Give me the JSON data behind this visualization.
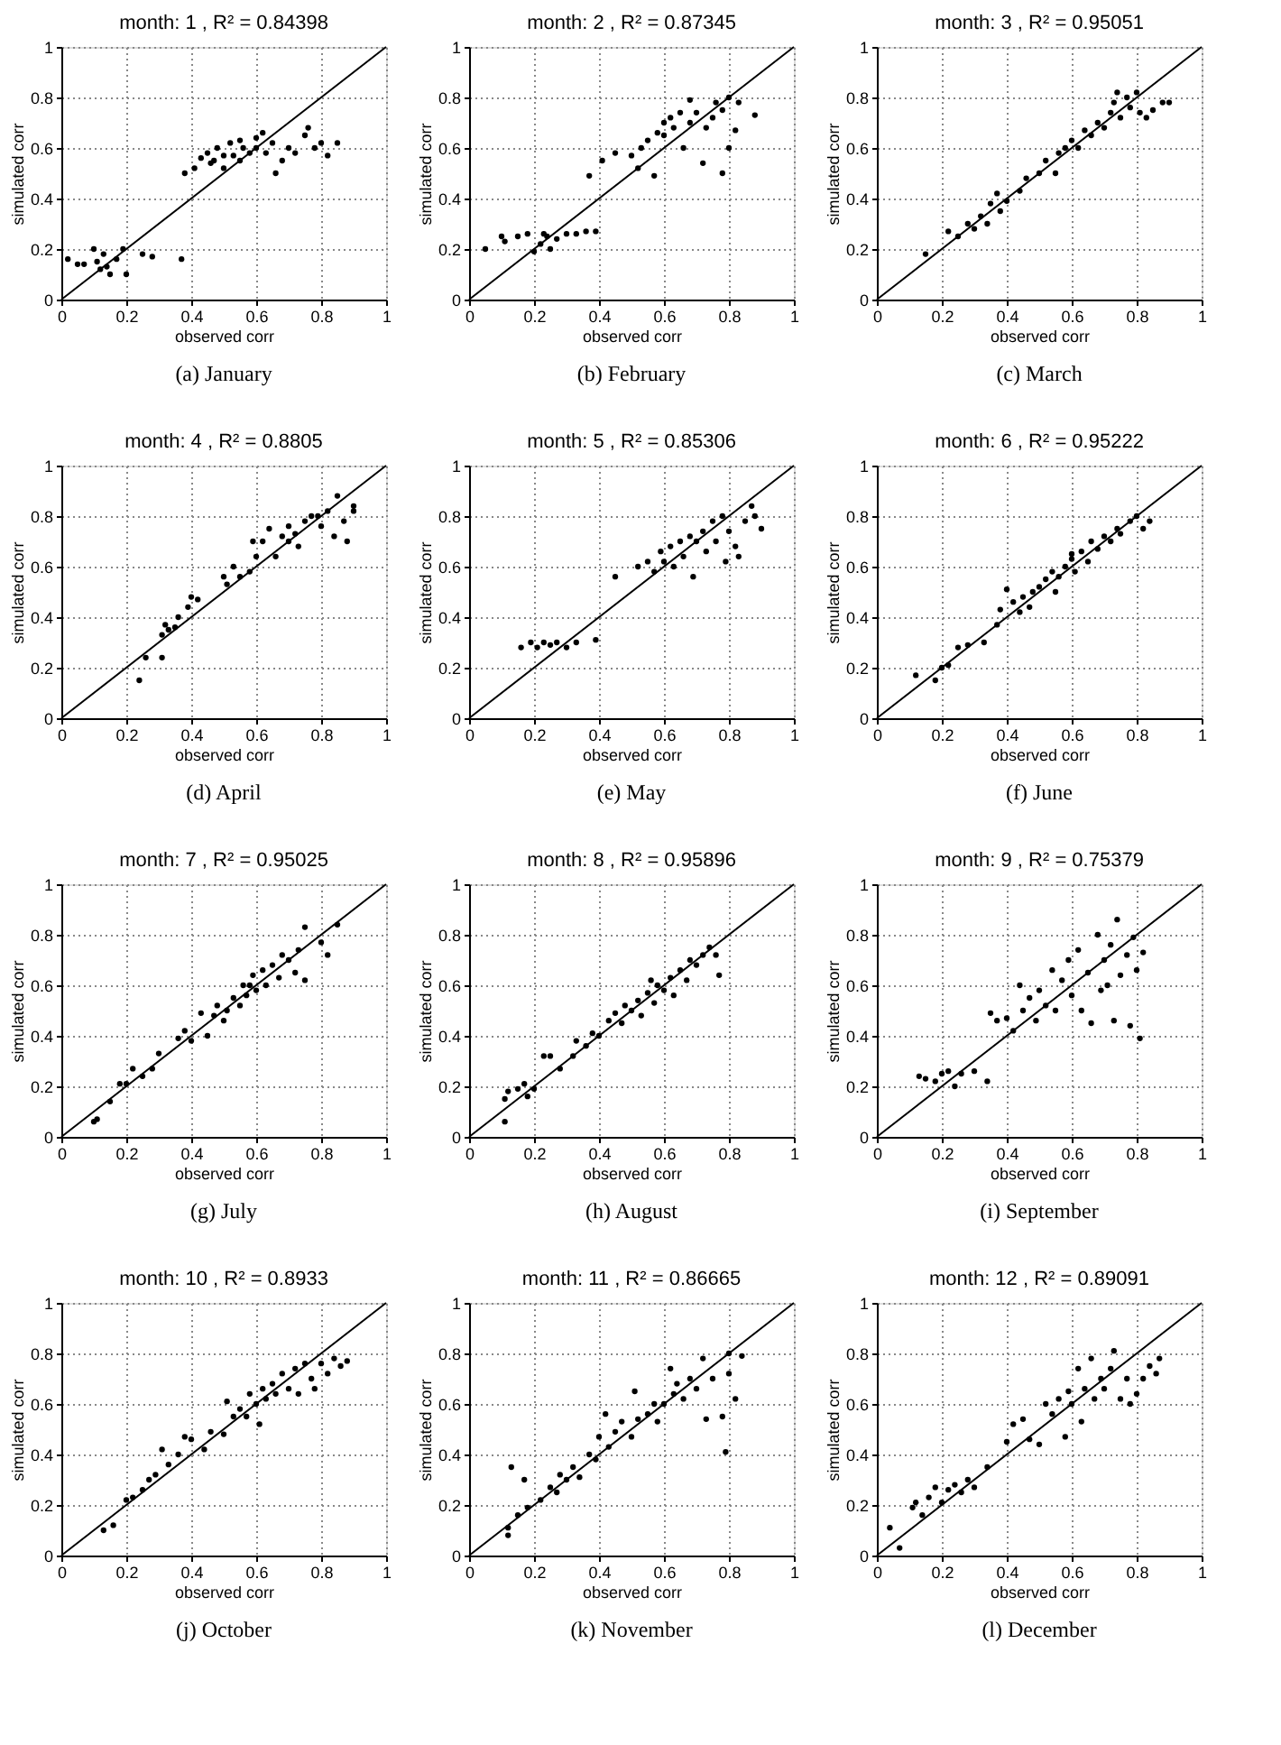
{
  "chart_data": [
    {
      "type": "scatter",
      "title": "month: 1 ,  R² = 0.84398",
      "xlabel": "observed corr",
      "ylabel": "simulated corr",
      "annotations": [
        "(a)  January"
      ],
      "xlim": [
        0,
        1
      ],
      "ylim": [
        0,
        1
      ],
      "xticks": [
        0,
        0.2,
        0.4,
        0.6,
        0.8,
        1
      ],
      "yticks": [
        0,
        0.2,
        0.4,
        0.6,
        0.8,
        1
      ],
      "grid": true,
      "marker": "circle",
      "series": [
        {
          "color": "#000000",
          "x": [
            0.02,
            0.05,
            0.07,
            0.1,
            0.12,
            0.13,
            0.15,
            0.17,
            0.19,
            0.2,
            0.25,
            0.28,
            0.37,
            0.14,
            0.11,
            0.38,
            0.41,
            0.43,
            0.45,
            0.47,
            0.48,
            0.5,
            0.5,
            0.52,
            0.53,
            0.55,
            0.56,
            0.58,
            0.6,
            0.6,
            0.62,
            0.63,
            0.65,
            0.66,
            0.68,
            0.7,
            0.72,
            0.75,
            0.76,
            0.78,
            0.8,
            0.82,
            0.85,
            0.55,
            0.46
          ],
          "values": [
            0.16,
            0.14,
            0.14,
            0.2,
            0.12,
            0.18,
            0.1,
            0.16,
            0.2,
            0.1,
            0.18,
            0.17,
            0.16,
            0.13,
            0.15,
            0.5,
            0.52,
            0.56,
            0.58,
            0.55,
            0.6,
            0.57,
            0.52,
            0.62,
            0.57,
            0.55,
            0.6,
            0.58,
            0.64,
            0.6,
            0.66,
            0.58,
            0.62,
            0.5,
            0.55,
            0.6,
            0.58,
            0.65,
            0.68,
            0.6,
            0.62,
            0.57,
            0.62,
            0.63,
            0.54
          ]
        },
        {
          "type": "line",
          "marker": "none",
          "color": "#000000",
          "x": [
            0,
            1
          ],
          "values": [
            0,
            1
          ]
        }
      ]
    },
    {
      "type": "scatter",
      "title": "month: 2 ,  R² = 0.87345",
      "xlabel": "observed corr",
      "ylabel": "simulated corr",
      "annotations": [
        "(b)  February"
      ],
      "xlim": [
        0,
        1
      ],
      "ylim": [
        0,
        1
      ],
      "xticks": [
        0,
        0.2,
        0.4,
        0.6,
        0.8,
        1
      ],
      "yticks": [
        0,
        0.2,
        0.4,
        0.6,
        0.8,
        1
      ],
      "grid": true,
      "marker": "circle",
      "series": [
        {
          "color": "#000000",
          "x": [
            0.05,
            0.1,
            0.11,
            0.15,
            0.18,
            0.2,
            0.22,
            0.23,
            0.25,
            0.27,
            0.3,
            0.33,
            0.36,
            0.39,
            0.24,
            0.37,
            0.41,
            0.45,
            0.5,
            0.52,
            0.53,
            0.55,
            0.57,
            0.58,
            0.6,
            0.62,
            0.63,
            0.65,
            0.66,
            0.68,
            0.7,
            0.72,
            0.73,
            0.75,
            0.76,
            0.78,
            0.78,
            0.8,
            0.8,
            0.82,
            0.83,
            0.88,
            0.68,
            0.6
          ],
          "values": [
            0.2,
            0.25,
            0.23,
            0.25,
            0.26,
            0.19,
            0.22,
            0.26,
            0.2,
            0.24,
            0.26,
            0.26,
            0.27,
            0.27,
            0.25,
            0.49,
            0.55,
            0.58,
            0.57,
            0.52,
            0.6,
            0.63,
            0.49,
            0.66,
            0.65,
            0.72,
            0.68,
            0.74,
            0.6,
            0.7,
            0.74,
            0.54,
            0.68,
            0.72,
            0.78,
            0.5,
            0.75,
            0.6,
            0.8,
            0.67,
            0.78,
            0.73,
            0.79,
            0.7
          ]
        },
        {
          "type": "line",
          "marker": "none",
          "color": "#000000",
          "x": [
            0,
            1
          ],
          "values": [
            0,
            1
          ]
        }
      ]
    },
    {
      "type": "scatter",
      "title": "month: 3 ,  R² = 0.95051",
      "xlabel": "observed corr",
      "ylabel": "simulated corr",
      "annotations": [
        "(c)  March"
      ],
      "xlim": [
        0,
        1
      ],
      "ylim": [
        0,
        1
      ],
      "xticks": [
        0,
        0.2,
        0.4,
        0.6,
        0.8,
        1
      ],
      "yticks": [
        0,
        0.2,
        0.4,
        0.6,
        0.8,
        1
      ],
      "grid": true,
      "marker": "circle",
      "series": [
        {
          "color": "#000000",
          "x": [
            0.15,
            0.22,
            0.25,
            0.28,
            0.3,
            0.32,
            0.34,
            0.35,
            0.37,
            0.38,
            0.4,
            0.44,
            0.46,
            0.5,
            0.52,
            0.55,
            0.56,
            0.58,
            0.6,
            0.62,
            0.64,
            0.66,
            0.68,
            0.7,
            0.72,
            0.73,
            0.75,
            0.77,
            0.78,
            0.8,
            0.81,
            0.83,
            0.85,
            0.88,
            0.9,
            0.74
          ],
          "values": [
            0.18,
            0.27,
            0.25,
            0.3,
            0.28,
            0.33,
            0.3,
            0.38,
            0.42,
            0.35,
            0.39,
            0.43,
            0.48,
            0.5,
            0.55,
            0.5,
            0.58,
            0.6,
            0.63,
            0.6,
            0.67,
            0.65,
            0.7,
            0.68,
            0.74,
            0.78,
            0.72,
            0.8,
            0.76,
            0.82,
            0.74,
            0.72,
            0.75,
            0.78,
            0.78,
            0.82
          ]
        },
        {
          "type": "line",
          "marker": "none",
          "color": "#000000",
          "x": [
            0,
            1
          ],
          "values": [
            0,
            1
          ]
        }
      ]
    },
    {
      "type": "scatter",
      "title": "month: 4 ,  R² = 0.8805",
      "xlabel": "observed corr",
      "ylabel": "simulated corr",
      "annotations": [
        "(d)  April"
      ],
      "xlim": [
        0,
        1
      ],
      "ylim": [
        0,
        1
      ],
      "xticks": [
        0,
        0.2,
        0.4,
        0.6,
        0.8,
        1
      ],
      "yticks": [
        0,
        0.2,
        0.4,
        0.6,
        0.8,
        1
      ],
      "grid": true,
      "marker": "circle",
      "series": [
        {
          "color": "#000000",
          "x": [
            0.24,
            0.26,
            0.31,
            0.31,
            0.32,
            0.33,
            0.35,
            0.36,
            0.39,
            0.4,
            0.42,
            0.5,
            0.51,
            0.53,
            0.55,
            0.58,
            0.59,
            0.6,
            0.62,
            0.64,
            0.66,
            0.68,
            0.7,
            0.72,
            0.73,
            0.75,
            0.77,
            0.79,
            0.8,
            0.82,
            0.84,
            0.85,
            0.87,
            0.88,
            0.9,
            0.9,
            0.7
          ],
          "values": [
            0.15,
            0.24,
            0.24,
            0.33,
            0.37,
            0.35,
            0.36,
            0.4,
            0.44,
            0.48,
            0.47,
            0.56,
            0.53,
            0.6,
            0.56,
            0.58,
            0.7,
            0.64,
            0.7,
            0.75,
            0.64,
            0.72,
            0.76,
            0.73,
            0.68,
            0.78,
            0.8,
            0.8,
            0.76,
            0.82,
            0.72,
            0.88,
            0.78,
            0.7,
            0.84,
            0.82,
            0.7
          ]
        },
        {
          "type": "line",
          "marker": "none",
          "color": "#000000",
          "x": [
            0,
            1
          ],
          "values": [
            0,
            1
          ]
        }
      ]
    },
    {
      "type": "scatter",
      "title": "month: 5 ,  R² = 0.85306",
      "xlabel": "observed corr",
      "ylabel": "simulated corr",
      "annotations": [
        "(e)  May"
      ],
      "xlim": [
        0,
        1
      ],
      "ylim": [
        0,
        1
      ],
      "xticks": [
        0,
        0.2,
        0.4,
        0.6,
        0.8,
        1
      ],
      "yticks": [
        0,
        0.2,
        0.4,
        0.6,
        0.8,
        1
      ],
      "grid": true,
      "marker": "circle",
      "series": [
        {
          "color": "#000000",
          "x": [
            0.16,
            0.19,
            0.21,
            0.23,
            0.25,
            0.27,
            0.3,
            0.33,
            0.39,
            0.45,
            0.52,
            0.55,
            0.57,
            0.59,
            0.6,
            0.62,
            0.63,
            0.65,
            0.66,
            0.68,
            0.69,
            0.7,
            0.72,
            0.73,
            0.75,
            0.76,
            0.78,
            0.79,
            0.8,
            0.82,
            0.83,
            0.85,
            0.87,
            0.88,
            0.9
          ],
          "values": [
            0.28,
            0.3,
            0.28,
            0.3,
            0.29,
            0.3,
            0.28,
            0.3,
            0.31,
            0.56,
            0.6,
            0.62,
            0.58,
            0.66,
            0.62,
            0.68,
            0.6,
            0.7,
            0.64,
            0.72,
            0.56,
            0.7,
            0.74,
            0.66,
            0.78,
            0.7,
            0.8,
            0.62,
            0.74,
            0.68,
            0.64,
            0.78,
            0.84,
            0.8,
            0.75
          ]
        },
        {
          "type": "line",
          "marker": "none",
          "color": "#000000",
          "x": [
            0,
            1
          ],
          "values": [
            0,
            1
          ]
        }
      ]
    },
    {
      "type": "scatter",
      "title": "month: 6 ,  R² = 0.95222",
      "xlabel": "observed corr",
      "ylabel": "simulated corr",
      "annotations": [
        "(f)  June"
      ],
      "xlim": [
        0,
        1
      ],
      "ylim": [
        0,
        1
      ],
      "xticks": [
        0,
        0.2,
        0.4,
        0.6,
        0.8,
        1
      ],
      "yticks": [
        0,
        0.2,
        0.4,
        0.6,
        0.8,
        1
      ],
      "grid": true,
      "marker": "circle",
      "series": [
        {
          "color": "#000000",
          "x": [
            0.12,
            0.18,
            0.2,
            0.22,
            0.25,
            0.28,
            0.33,
            0.37,
            0.38,
            0.4,
            0.42,
            0.44,
            0.45,
            0.47,
            0.48,
            0.5,
            0.52,
            0.54,
            0.55,
            0.56,
            0.58,
            0.6,
            0.61,
            0.63,
            0.65,
            0.66,
            0.68,
            0.7,
            0.72,
            0.74,
            0.75,
            0.78,
            0.8,
            0.82,
            0.84,
            0.6
          ],
          "values": [
            0.17,
            0.15,
            0.2,
            0.21,
            0.28,
            0.29,
            0.3,
            0.37,
            0.43,
            0.51,
            0.46,
            0.42,
            0.48,
            0.44,
            0.5,
            0.52,
            0.55,
            0.58,
            0.5,
            0.56,
            0.6,
            0.63,
            0.58,
            0.66,
            0.62,
            0.7,
            0.67,
            0.72,
            0.7,
            0.75,
            0.73,
            0.78,
            0.8,
            0.75,
            0.78,
            0.65
          ]
        },
        {
          "type": "line",
          "marker": "none",
          "color": "#000000",
          "x": [
            0,
            1
          ],
          "values": [
            0,
            1
          ]
        }
      ]
    },
    {
      "type": "scatter",
      "title": "month: 7 ,  R² = 0.95025",
      "xlabel": "observed corr",
      "ylabel": "simulated corr",
      "annotations": [
        "(g)  July"
      ],
      "xlim": [
        0,
        1
      ],
      "ylim": [
        0,
        1
      ],
      "xticks": [
        0,
        0.2,
        0.4,
        0.6,
        0.8,
        1
      ],
      "yticks": [
        0,
        0.2,
        0.4,
        0.6,
        0.8,
        1
      ],
      "grid": true,
      "marker": "circle",
      "series": [
        {
          "color": "#000000",
          "x": [
            0.1,
            0.11,
            0.15,
            0.18,
            0.2,
            0.22,
            0.25,
            0.28,
            0.3,
            0.36,
            0.38,
            0.4,
            0.43,
            0.45,
            0.47,
            0.48,
            0.5,
            0.51,
            0.53,
            0.55,
            0.56,
            0.57,
            0.59,
            0.6,
            0.62,
            0.63,
            0.65,
            0.67,
            0.68,
            0.7,
            0.72,
            0.73,
            0.75,
            0.75,
            0.8,
            0.82,
            0.85,
            0.58
          ],
          "values": [
            0.06,
            0.07,
            0.14,
            0.21,
            0.21,
            0.27,
            0.24,
            0.27,
            0.33,
            0.39,
            0.42,
            0.38,
            0.49,
            0.4,
            0.48,
            0.52,
            0.46,
            0.5,
            0.55,
            0.52,
            0.6,
            0.56,
            0.64,
            0.58,
            0.66,
            0.6,
            0.68,
            0.63,
            0.72,
            0.7,
            0.65,
            0.74,
            0.62,
            0.83,
            0.77,
            0.72,
            0.84,
            0.6
          ]
        },
        {
          "type": "line",
          "marker": "none",
          "color": "#000000",
          "x": [
            0,
            1
          ],
          "values": [
            0,
            1
          ]
        }
      ]
    },
    {
      "type": "scatter",
      "title": "month: 8 ,  R² = 0.95896",
      "xlabel": "observed corr",
      "ylabel": "simulated corr",
      "annotations": [
        "(h)  August"
      ],
      "xlim": [
        0,
        1
      ],
      "ylim": [
        0,
        1
      ],
      "xticks": [
        0,
        0.2,
        0.4,
        0.6,
        0.8,
        1
      ],
      "yticks": [
        0,
        0.2,
        0.4,
        0.6,
        0.8,
        1
      ],
      "grid": true,
      "marker": "circle",
      "series": [
        {
          "color": "#000000",
          "x": [
            0.11,
            0.11,
            0.12,
            0.15,
            0.17,
            0.18,
            0.2,
            0.23,
            0.25,
            0.28,
            0.32,
            0.33,
            0.36,
            0.38,
            0.4,
            0.43,
            0.45,
            0.47,
            0.48,
            0.5,
            0.52,
            0.53,
            0.55,
            0.57,
            0.58,
            0.6,
            0.62,
            0.63,
            0.65,
            0.67,
            0.68,
            0.7,
            0.72,
            0.74,
            0.76,
            0.77,
            0.56
          ],
          "values": [
            0.06,
            0.15,
            0.18,
            0.19,
            0.21,
            0.16,
            0.19,
            0.32,
            0.32,
            0.27,
            0.32,
            0.38,
            0.36,
            0.41,
            0.4,
            0.46,
            0.49,
            0.45,
            0.52,
            0.5,
            0.54,
            0.48,
            0.57,
            0.53,
            0.6,
            0.58,
            0.63,
            0.56,
            0.66,
            0.62,
            0.7,
            0.68,
            0.72,
            0.75,
            0.72,
            0.64,
            0.62
          ]
        },
        {
          "type": "line",
          "marker": "none",
          "color": "#000000",
          "x": [
            0,
            1
          ],
          "values": [
            0,
            1
          ]
        }
      ]
    },
    {
      "type": "scatter",
      "title": "month: 9 ,  R² = 0.75379",
      "xlabel": "observed corr",
      "ylabel": "simulated corr",
      "annotations": [
        "(i)  September"
      ],
      "xlim": [
        0,
        1
      ],
      "ylim": [
        0,
        1
      ],
      "xticks": [
        0,
        0.2,
        0.4,
        0.6,
        0.8,
        1
      ],
      "yticks": [
        0,
        0.2,
        0.4,
        0.6,
        0.8,
        1
      ],
      "grid": true,
      "marker": "circle",
      "series": [
        {
          "color": "#000000",
          "x": [
            0.13,
            0.15,
            0.18,
            0.2,
            0.22,
            0.24,
            0.26,
            0.3,
            0.34,
            0.35,
            0.37,
            0.4,
            0.42,
            0.44,
            0.45,
            0.47,
            0.49,
            0.5,
            0.52,
            0.54,
            0.55,
            0.57,
            0.59,
            0.6,
            0.62,
            0.63,
            0.65,
            0.66,
            0.68,
            0.69,
            0.7,
            0.72,
            0.73,
            0.74,
            0.75,
            0.77,
            0.78,
            0.79,
            0.8,
            0.81,
            0.82,
            0.71
          ],
          "values": [
            0.24,
            0.23,
            0.22,
            0.25,
            0.26,
            0.2,
            0.25,
            0.26,
            0.22,
            0.49,
            0.46,
            0.47,
            0.42,
            0.6,
            0.5,
            0.55,
            0.46,
            0.58,
            0.52,
            0.66,
            0.5,
            0.62,
            0.7,
            0.56,
            0.74,
            0.5,
            0.65,
            0.45,
            0.8,
            0.58,
            0.7,
            0.76,
            0.46,
            0.86,
            0.64,
            0.72,
            0.44,
            0.79,
            0.66,
            0.39,
            0.73,
            0.6
          ]
        },
        {
          "type": "line",
          "marker": "none",
          "color": "#000000",
          "x": [
            0,
            1
          ],
          "values": [
            0,
            1
          ]
        }
      ]
    },
    {
      "type": "scatter",
      "title": "month: 10 ,  R² = 0.8933",
      "xlabel": "observed corr",
      "ylabel": "simulated corr",
      "annotations": [
        "(j)  October"
      ],
      "xlim": [
        0,
        1
      ],
      "ylim": [
        0,
        1
      ],
      "xticks": [
        0,
        0.2,
        0.4,
        0.6,
        0.8,
        1
      ],
      "yticks": [
        0,
        0.2,
        0.4,
        0.6,
        0.8,
        1
      ],
      "grid": true,
      "marker": "circle",
      "series": [
        {
          "color": "#000000",
          "x": [
            0.13,
            0.16,
            0.2,
            0.22,
            0.25,
            0.27,
            0.29,
            0.31,
            0.33,
            0.36,
            0.38,
            0.4,
            0.44,
            0.46,
            0.5,
            0.51,
            0.53,
            0.55,
            0.57,
            0.58,
            0.6,
            0.61,
            0.62,
            0.63,
            0.65,
            0.66,
            0.68,
            0.7,
            0.72,
            0.73,
            0.75,
            0.77,
            0.78,
            0.8,
            0.82,
            0.84,
            0.86,
            0.88
          ],
          "values": [
            0.1,
            0.12,
            0.22,
            0.23,
            0.26,
            0.3,
            0.32,
            0.42,
            0.36,
            0.4,
            0.47,
            0.46,
            0.42,
            0.49,
            0.48,
            0.61,
            0.55,
            0.58,
            0.55,
            0.64,
            0.6,
            0.52,
            0.66,
            0.62,
            0.68,
            0.64,
            0.72,
            0.66,
            0.74,
            0.64,
            0.76,
            0.7,
            0.66,
            0.76,
            0.72,
            0.78,
            0.75,
            0.77
          ]
        },
        {
          "type": "line",
          "marker": "none",
          "color": "#000000",
          "x": [
            0,
            1
          ],
          "values": [
            0,
            1
          ]
        }
      ]
    },
    {
      "type": "scatter",
      "title": "month: 11 ,  R² = 0.86665",
      "xlabel": "observed corr",
      "ylabel": "simulated corr",
      "annotations": [
        "(k)  November"
      ],
      "xlim": [
        0,
        1
      ],
      "ylim": [
        0,
        1
      ],
      "xticks": [
        0,
        0.2,
        0.4,
        0.6,
        0.8,
        1
      ],
      "yticks": [
        0,
        0.2,
        0.4,
        0.6,
        0.8,
        1
      ],
      "grid": true,
      "marker": "circle",
      "series": [
        {
          "color": "#000000",
          "x": [
            0.12,
            0.12,
            0.13,
            0.15,
            0.17,
            0.18,
            0.22,
            0.25,
            0.27,
            0.28,
            0.3,
            0.32,
            0.34,
            0.37,
            0.39,
            0.4,
            0.42,
            0.43,
            0.45,
            0.47,
            0.5,
            0.51,
            0.52,
            0.55,
            0.57,
            0.58,
            0.6,
            0.62,
            0.63,
            0.64,
            0.66,
            0.68,
            0.7,
            0.72,
            0.73,
            0.75,
            0.78,
            0.79,
            0.8,
            0.8,
            0.82,
            0.84
          ],
          "values": [
            0.08,
            0.11,
            0.35,
            0.16,
            0.3,
            0.19,
            0.22,
            0.27,
            0.25,
            0.32,
            0.3,
            0.35,
            0.31,
            0.4,
            0.38,
            0.47,
            0.56,
            0.43,
            0.49,
            0.53,
            0.47,
            0.65,
            0.54,
            0.56,
            0.6,
            0.53,
            0.6,
            0.74,
            0.64,
            0.68,
            0.62,
            0.7,
            0.66,
            0.78,
            0.54,
            0.7,
            0.55,
            0.41,
            0.72,
            0.8,
            0.62,
            0.79
          ]
        },
        {
          "type": "line",
          "marker": "none",
          "color": "#000000",
          "x": [
            0,
            1
          ],
          "values": [
            0,
            1
          ]
        }
      ]
    },
    {
      "type": "scatter",
      "title": "month: 12 ,  R² = 0.89091",
      "xlabel": "observed corr",
      "ylabel": "simulated corr",
      "annotations": [
        "(l)  December"
      ],
      "xlim": [
        0,
        1
      ],
      "ylim": [
        0,
        1
      ],
      "xticks": [
        0,
        0.2,
        0.4,
        0.6,
        0.8,
        1
      ],
      "yticks": [
        0,
        0.2,
        0.4,
        0.6,
        0.8,
        1
      ],
      "grid": true,
      "marker": "circle",
      "series": [
        {
          "color": "#000000",
          "x": [
            0.04,
            0.07,
            0.11,
            0.12,
            0.14,
            0.16,
            0.18,
            0.2,
            0.22,
            0.24,
            0.26,
            0.28,
            0.3,
            0.34,
            0.4,
            0.42,
            0.45,
            0.47,
            0.5,
            0.52,
            0.54,
            0.56,
            0.58,
            0.59,
            0.6,
            0.62,
            0.63,
            0.64,
            0.66,
            0.67,
            0.69,
            0.7,
            0.72,
            0.73,
            0.75,
            0.77,
            0.78,
            0.8,
            0.82,
            0.84,
            0.86,
            0.87
          ],
          "values": [
            0.11,
            0.03,
            0.19,
            0.21,
            0.16,
            0.23,
            0.27,
            0.21,
            0.26,
            0.28,
            0.25,
            0.3,
            0.27,
            0.35,
            0.45,
            0.52,
            0.54,
            0.46,
            0.44,
            0.6,
            0.56,
            0.62,
            0.47,
            0.65,
            0.6,
            0.74,
            0.53,
            0.66,
            0.78,
            0.62,
            0.7,
            0.66,
            0.74,
            0.81,
            0.62,
            0.7,
            0.6,
            0.64,
            0.7,
            0.75,
            0.72,
            0.78
          ]
        },
        {
          "type": "line",
          "marker": "none",
          "color": "#000000",
          "x": [
            0,
            1
          ],
          "values": [
            0,
            1
          ]
        }
      ]
    }
  ]
}
